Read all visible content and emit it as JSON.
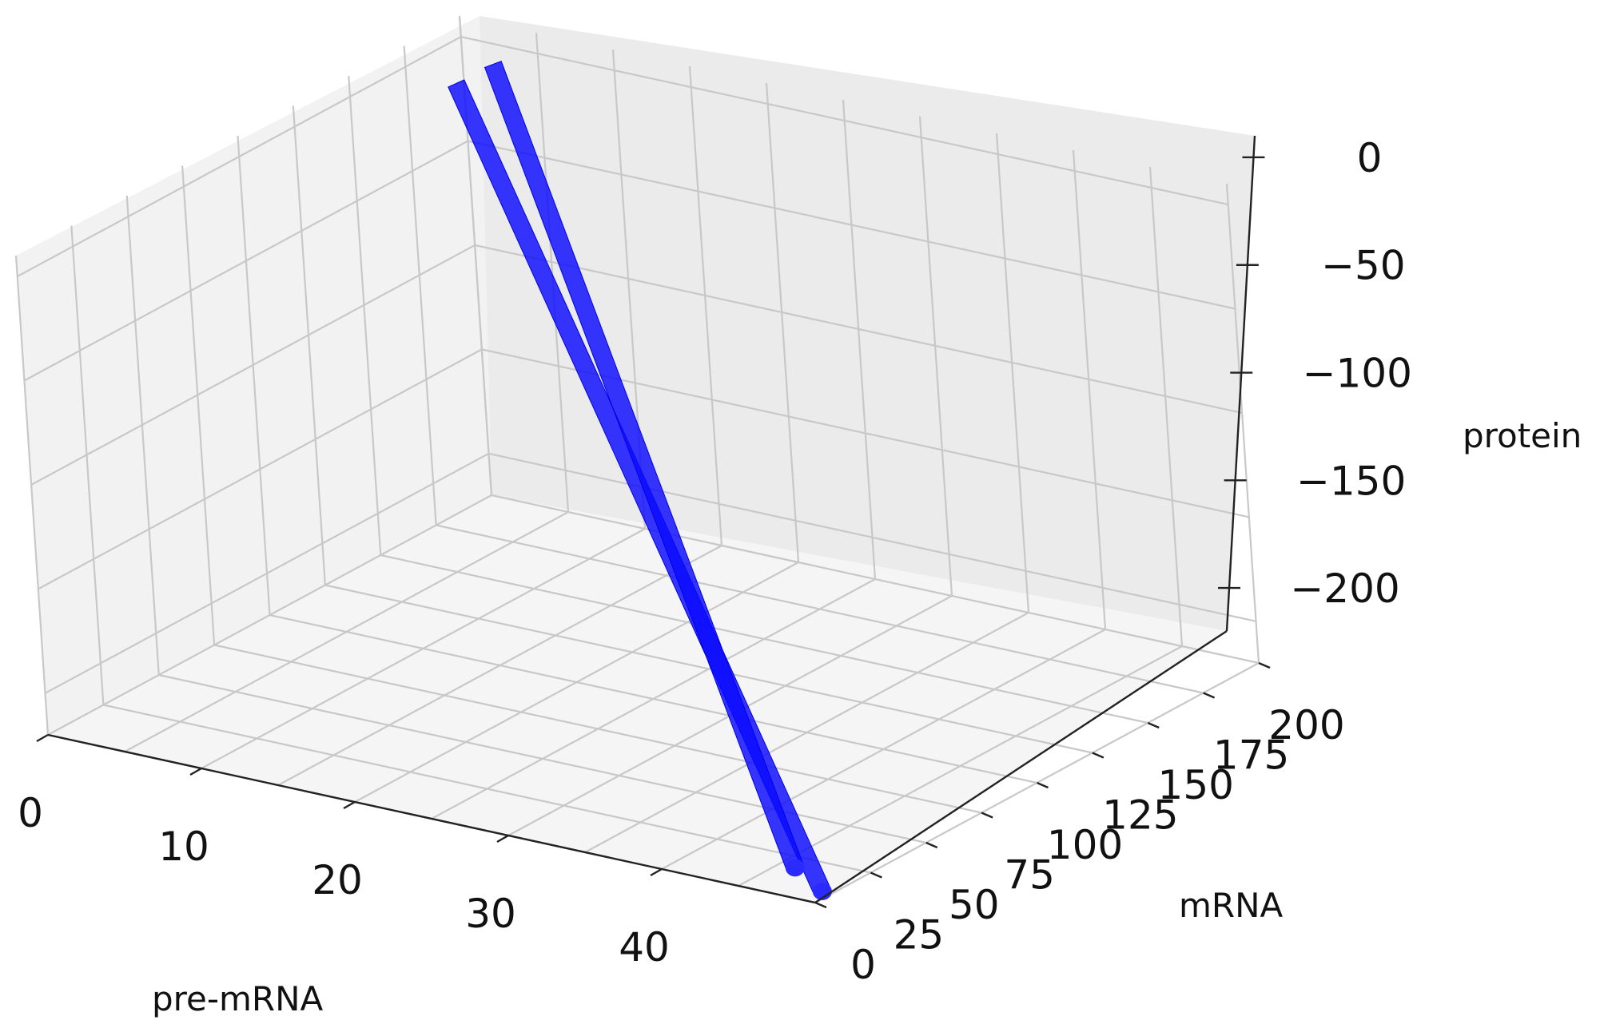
{
  "chart_data": {
    "type": "scatter3d",
    "title": "",
    "xlabel": "pre-mRNA",
    "ylabel": "mRNA",
    "zlabel": "protein",
    "x_ticks": [
      "0",
      "10",
      "20",
      "30",
      "40"
    ],
    "y_ticks": [
      "0",
      "25",
      "50",
      "75",
      "100",
      "125",
      "150",
      "175",
      "200"
    ],
    "z_ticks": [
      "0",
      "−50",
      "−100",
      "−150",
      "−200"
    ],
    "xlim": [
      0,
      50
    ],
    "ylim": [
      0,
      200
    ],
    "zlim": [
      -220,
      10
    ],
    "grid": true,
    "legend": "none",
    "color": "#0000ff",
    "series": [
      {
        "marker": "point",
        "segments": [
          {
            "x": [
              1,
              49
            ],
            "y": [
              190,
              10
            ],
            "z": [
              -15,
              -222
            ]
          },
          {
            "x": [
              2,
              47
            ],
            "y": [
              200,
              12
            ],
            "z": [
              -10,
              -215
            ]
          }
        ]
      }
    ]
  }
}
